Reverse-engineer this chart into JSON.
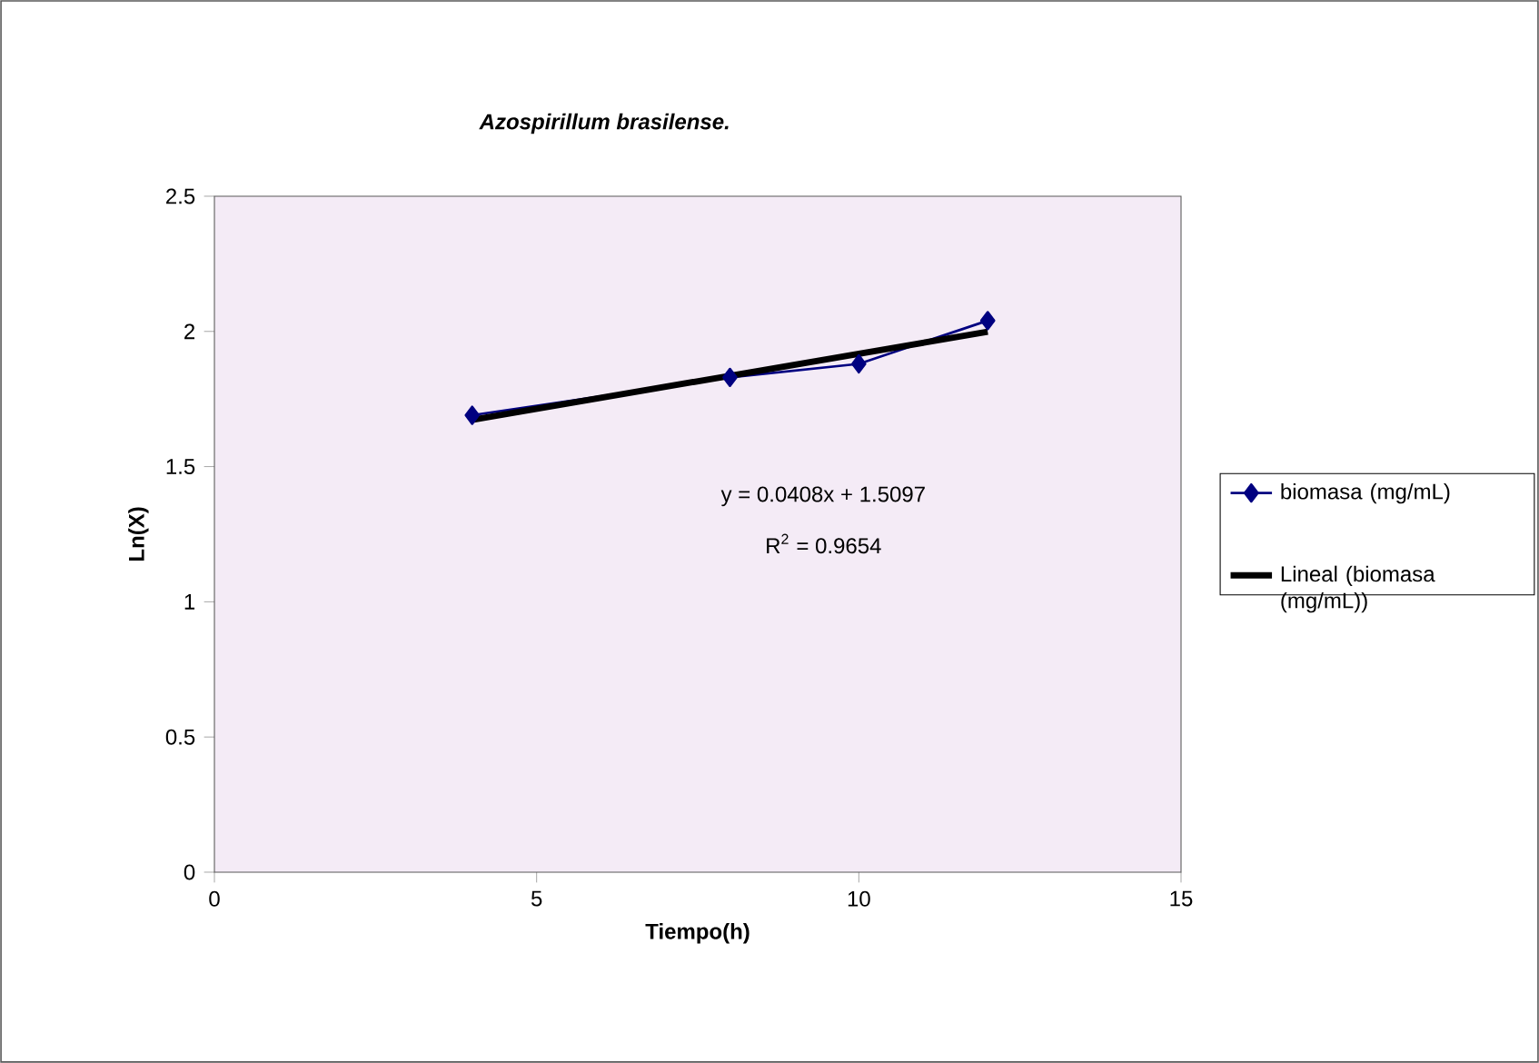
{
  "chart_data": {
    "type": "line",
    "title": "Azospirillum brasilense.",
    "xlabel": "Tiempo(h)",
    "ylabel": "Ln(X)",
    "xlim": [
      0,
      15
    ],
    "xticks": [
      0,
      5,
      10,
      15
    ],
    "ylim": [
      0,
      2.5
    ],
    "yticks": [
      0,
      0.5,
      1,
      1.5,
      2,
      2.5
    ],
    "series": [
      {
        "name": "biomasa (mg/mL)",
        "color": "#000080",
        "x": [
          4,
          8,
          10,
          12
        ],
        "values": [
          1.69,
          1.83,
          1.88,
          2.04
        ],
        "marker": "diamond"
      },
      {
        "name": "Lineal (biomasa (mg/mL))",
        "color": "#000000",
        "x": [
          4,
          12
        ],
        "values": [
          1.673,
          1.999
        ],
        "marker": "none"
      }
    ],
    "annotations": [
      "y = 0.0408x + 1.5097",
      "R$^{2}$ = 0.9654"
    ],
    "legend": "right",
    "grid": false,
    "line_style": "solid"
  }
}
